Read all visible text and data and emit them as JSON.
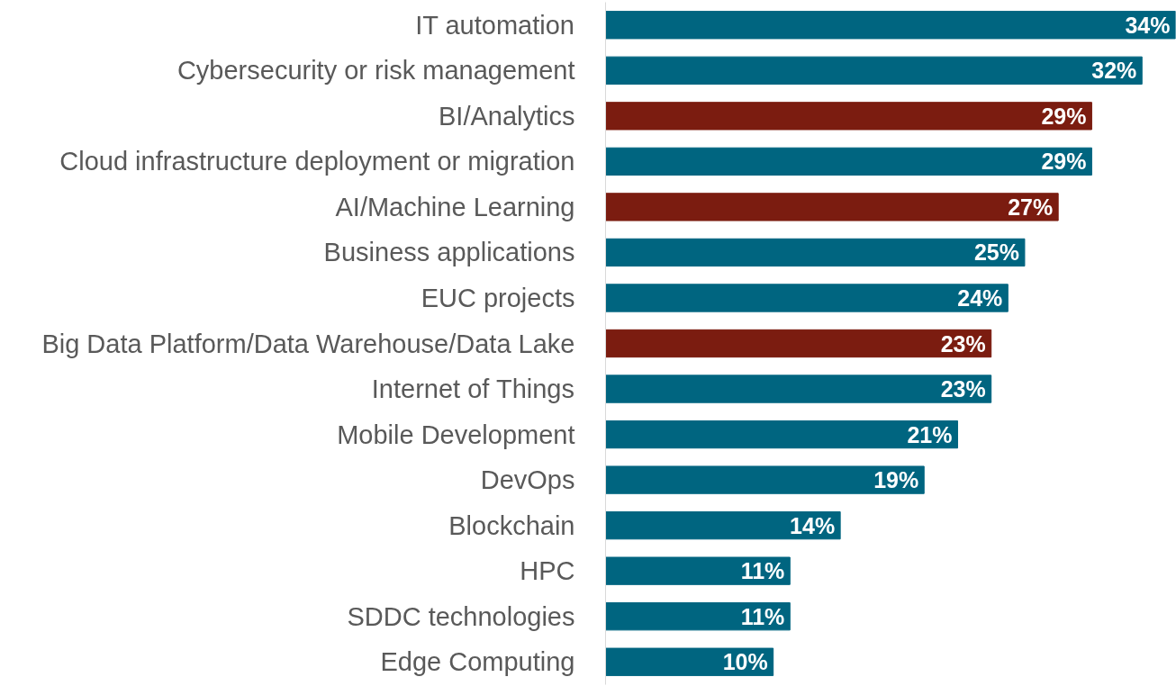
{
  "chart_data": {
    "type": "bar",
    "orientation": "horizontal",
    "categories": [
      "IT automation",
      "Cybersecurity or risk management",
      "BI/Analytics",
      "Cloud infrastructure deployment or migration",
      "AI/Machine Learning",
      "Business applications",
      "EUC projects",
      "Big Data Platform/Data Warehouse/Data Lake",
      "Internet of Things",
      "Mobile Development",
      "DevOps",
      "Blockchain",
      "HPC",
      "SDDC technologies",
      "Edge Computing"
    ],
    "values": [
      34,
      32,
      29,
      29,
      27,
      25,
      24,
      23,
      23,
      21,
      19,
      14,
      11,
      11,
      10
    ],
    "colors": [
      "#006580",
      "#006580",
      "#7b1c10",
      "#006580",
      "#7b1c10",
      "#006580",
      "#006580",
      "#7b1c10",
      "#006580",
      "#006580",
      "#006580",
      "#006580",
      "#006580",
      "#006580",
      "#006580"
    ],
    "value_labels": [
      "34%",
      "32%",
      "29%",
      "29%",
      "27%",
      "25%",
      "24%",
      "23%",
      "23%",
      "21%",
      "19%",
      "14%",
      "11%",
      "11%",
      "10%"
    ],
    "grid": false
  }
}
